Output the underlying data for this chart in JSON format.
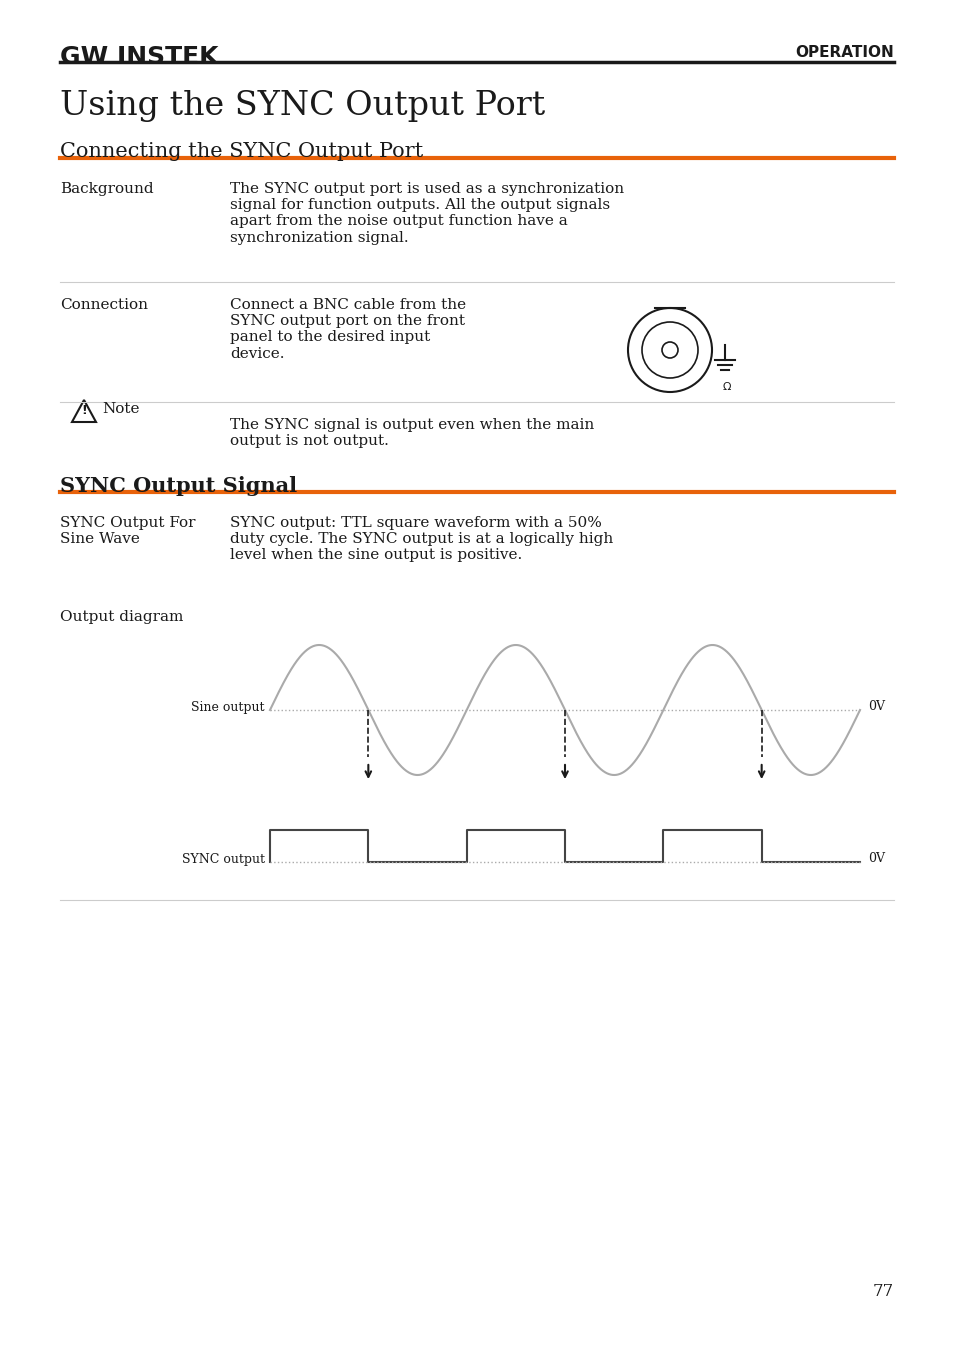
{
  "bg_color": "#ffffff",
  "header_logo_text": "GW INSTEK",
  "header_right_text": "OPERATION",
  "header_line_color": "#1a1a1a",
  "main_title": "Using the SYNC Output Port",
  "section1_title": "Connecting the SYNC Output Port",
  "section1_line_color": "#e8620a",
  "section2_title": "SYNC Output Signal",
  "section2_line_color": "#e8620a",
  "row1_label": "Background",
  "row1_text": "The SYNC output port is used as a synchronization\nsignal for function outputs. All the output signals\napart from the noise output function have a\nsynchronization signal.",
  "row1_divider_color": "#aaaaaa",
  "row2_label": "Connection",
  "row2_text": "Connect a BNC cable from the\nSYNC output port on the front\npanel to the desired input\ndevice.",
  "row2_divider_color": "#aaaaaa",
  "row3_label": "Note",
  "row3_text": "The SYNC signal is output even when the main\noutput is not output.",
  "row3_divider_color": "#aaaaaa",
  "row4_label": "SYNC Output For\nSine Wave",
  "row4_text": "SYNC output: TTL square waveform with a 50%\nduty cycle. The SYNC output is at a logically high\nlevel when the sine output is positive.",
  "row5_label": "Output diagram",
  "sine_label": "Sine output",
  "sync_label": "SYNC output",
  "ov_label": "0V",
  "signal_color": "#aaaaaa",
  "arrow_color": "#1a1a1a",
  "dotted_line_color": "#aaaaaa",
  "page_number": "77"
}
